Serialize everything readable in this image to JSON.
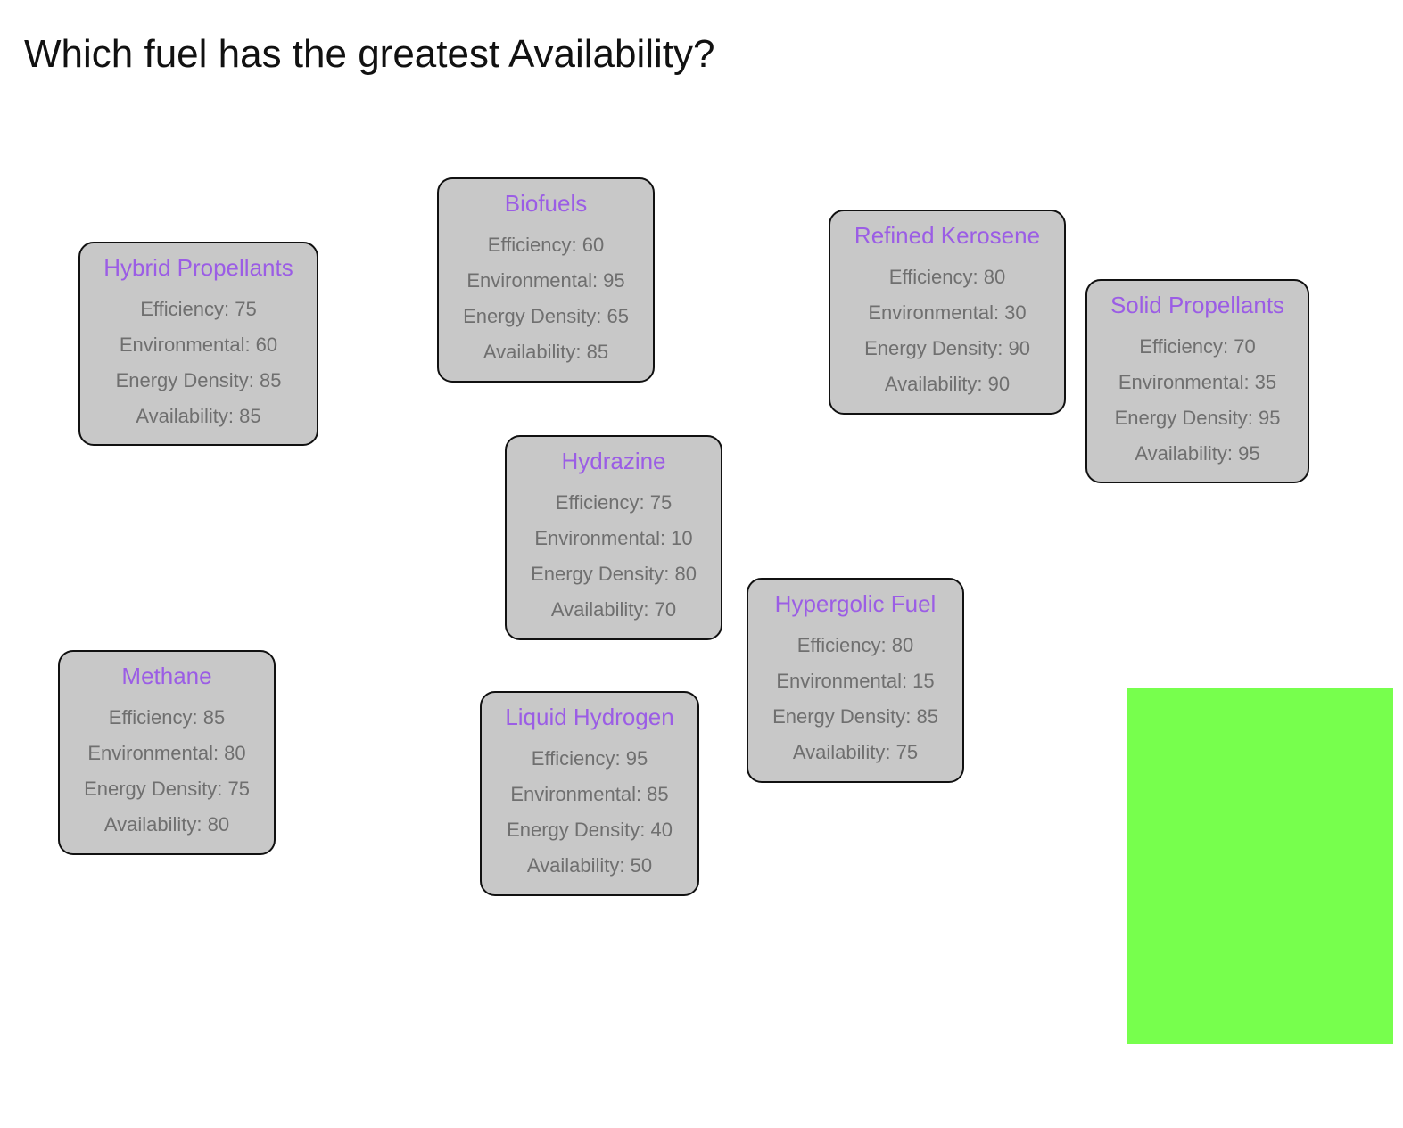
{
  "question": "Which fuel has the greatest Availability?",
  "colors": {
    "card_background": "#c8c8c8",
    "card_border": "#111111",
    "title_color": "#9b5de5",
    "stat_color": "#6f6f6f",
    "drop_zone": "#77ff4d"
  },
  "cards": [
    {
      "name": "Hybrid Propellants",
      "stats": [
        "Efficiency: 75",
        "Environmental: 60",
        "Energy Density: 85",
        "Availability: 85"
      ]
    },
    {
      "name": "Biofuels",
      "stats": [
        "Efficiency: 60",
        "Environmental: 95",
        "Energy Density: 65",
        "Availability: 85"
      ]
    },
    {
      "name": "Refined Kerosene",
      "stats": [
        "Efficiency: 80",
        "Environmental: 30",
        "Energy Density: 90",
        "Availability: 90"
      ]
    },
    {
      "name": "Solid Propellants",
      "stats": [
        "Efficiency: 70",
        "Environmental: 35",
        "Energy Density: 95",
        "Availability: 95"
      ]
    },
    {
      "name": "Hydrazine",
      "stats": [
        "Efficiency: 75",
        "Environmental: 10",
        "Energy Density: 80",
        "Availability: 70"
      ]
    },
    {
      "name": "Hypergolic Fuel",
      "stats": [
        "Efficiency: 80",
        "Environmental: 15",
        "Energy Density: 85",
        "Availability: 75"
      ]
    },
    {
      "name": "Methane",
      "stats": [
        "Efficiency: 85",
        "Environmental: 80",
        "Energy Density: 75",
        "Availability: 80"
      ]
    },
    {
      "name": "Liquid Hydrogen",
      "stats": [
        "Efficiency: 95",
        "Environmental: 85",
        "Energy Density: 40",
        "Availability: 50"
      ]
    }
  ]
}
